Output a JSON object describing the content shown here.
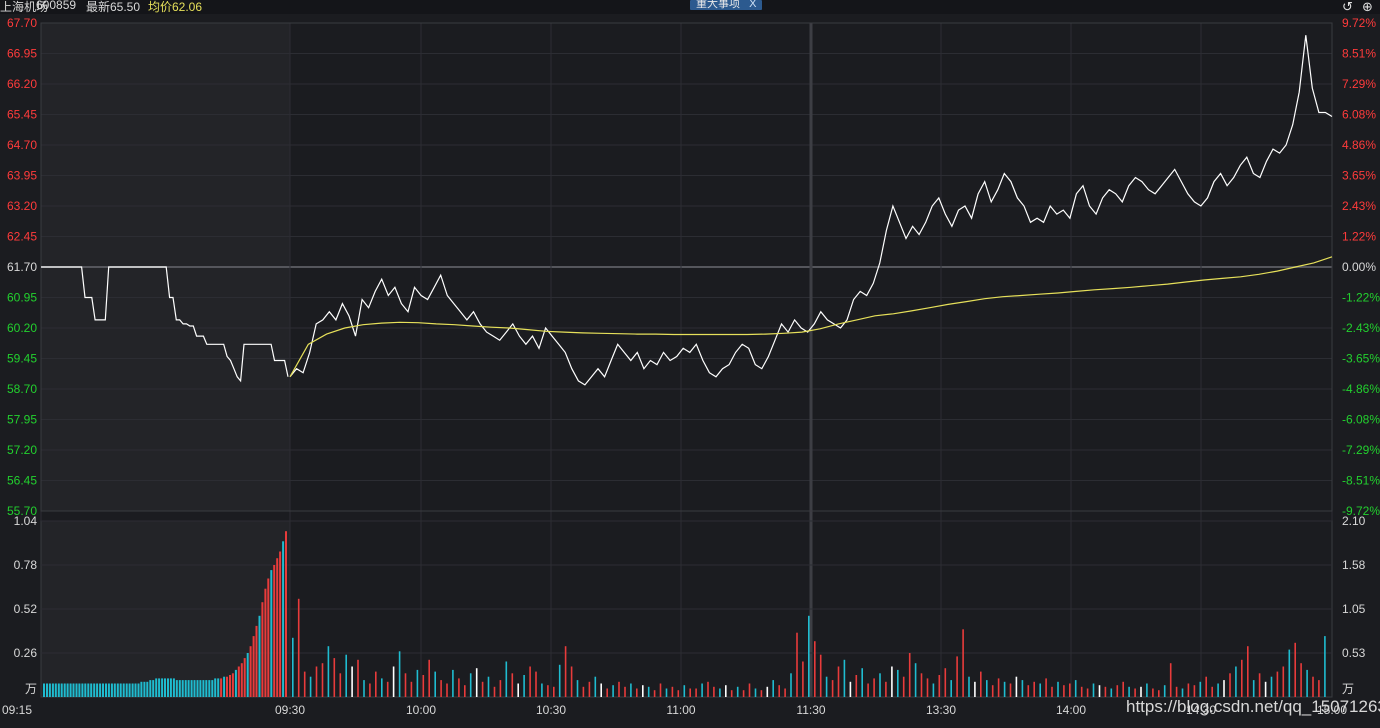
{
  "header": {
    "name": "上海机场",
    "code": "600859",
    "latest": "最新65.50",
    "avg": "均价62.06",
    "event": "重大事项",
    "event_close": "X"
  },
  "icons": {
    "undo": "undo-icon",
    "add": "plus-icon"
  },
  "colors": {
    "up": "#ff3b3b",
    "down": "#22d02e",
    "price": "#ffffff",
    "avg": "#e6e05a",
    "vol_up": "#e83b3b",
    "vol_down": "#1fbcd0",
    "vol_flat": "#ffffff"
  },
  "unit_label": "万",
  "watermark": "https://blog.csdn.net/qq_15071263",
  "chart_data": [
    {
      "type": "line",
      "prev_close": 61.7,
      "ylim": [
        55.7,
        67.7
      ],
      "y_ticks": [
        "67.70",
        "66.95",
        "66.20",
        "65.45",
        "64.70",
        "63.95",
        "63.20",
        "62.45",
        "61.70",
        "60.95",
        "60.20",
        "59.45",
        "58.70",
        "57.95",
        "57.20",
        "56.45",
        "55.70"
      ],
      "pct_ticks": [
        "9.72%",
        "8.51%",
        "7.29%",
        "6.08%",
        "4.86%",
        "3.65%",
        "2.43%",
        "1.22%",
        "0.00%",
        "-1.22%",
        "-2.43%",
        "-3.65%",
        "-4.86%",
        "-6.08%",
        "-7.29%",
        "-8.51%",
        "-9.72%"
      ],
      "x_labels": [
        "09:15",
        "09:30",
        "10:00",
        "10:30",
        "11:00",
        "11:30",
        "13:30",
        "14:00",
        "14:30",
        "15:00"
      ],
      "series": [
        {
          "values": [
            61.7,
            61.7,
            61.7,
            61.7,
            61.7,
            61.7,
            61.7,
            61.7,
            61.7,
            61.7,
            61.7,
            61.7,
            61.7,
            60.95,
            60.95,
            60.95,
            60.4,
            60.4,
            60.4,
            60.4,
            61.7,
            61.7,
            61.7,
            61.7,
            61.7,
            61.7,
            61.7,
            61.7,
            61.7,
            61.7,
            61.7,
            61.7,
            61.7,
            61.7,
            61.7,
            61.7,
            61.7,
            61.7,
            60.95,
            60.95,
            60.4,
            60.4,
            60.3,
            60.3,
            60.25,
            60.25,
            60.0,
            60.0,
            60.0,
            59.8,
            59.8,
            59.8,
            59.8,
            59.8,
            59.8,
            59.5,
            59.4,
            59.2,
            59.0,
            58.9,
            59.8,
            59.8,
            59.8,
            59.8,
            59.8,
            59.8,
            59.8,
            59.8,
            59.8,
            59.4,
            59.4,
            59.4,
            59.4,
            59.0
          ],
          "color": "#ffffff"
        },
        {
          "values": [
            59.0,
            59.2,
            59.1,
            59.6,
            60.3,
            60.4,
            60.6,
            60.4,
            60.8,
            60.5,
            60.0,
            60.9,
            60.7,
            61.1,
            61.4,
            61.0,
            61.2,
            60.8,
            60.6,
            61.2,
            61.0,
            60.9,
            61.2,
            61.5,
            61.0,
            60.8,
            60.6,
            60.4,
            60.6,
            60.3,
            60.1,
            60.0,
            59.9,
            60.1,
            60.3,
            60.0,
            59.8,
            60.0,
            59.7,
            60.2,
            60.0,
            59.8,
            59.6,
            59.2,
            58.9,
            58.8,
            59.0,
            59.2,
            59.0,
            59.4,
            59.8,
            59.6,
            59.4,
            59.6,
            59.2,
            59.4,
            59.3,
            59.6,
            59.4,
            59.5,
            59.7,
            59.6,
            59.8,
            59.4,
            59.1,
            59.0,
            59.2,
            59.3,
            59.6,
            59.8,
            59.7,
            59.3,
            59.2,
            59.5,
            59.9,
            60.3,
            60.1,
            60.4,
            60.2,
            60.1,
            60.3,
            60.6,
            60.4,
            60.3,
            60.2,
            60.4,
            60.9,
            61.1,
            61.0,
            61.3,
            61.8,
            62.6,
            63.2,
            62.8,
            62.4,
            62.7,
            62.5,
            62.8,
            63.2,
            63.4,
            63.0,
            62.7,
            63.1,
            63.2,
            62.9,
            63.5,
            63.8,
            63.3,
            63.6,
            64.0,
            63.8,
            63.4,
            63.2,
            62.8,
            62.9,
            62.8,
            63.2,
            63.0,
            63.1,
            62.9,
            63.5,
            63.7,
            63.2,
            63.0,
            63.4,
            63.6,
            63.5,
            63.3,
            63.7,
            63.9,
            63.8,
            63.6,
            63.5,
            63.7,
            63.9,
            64.1,
            63.8,
            63.5,
            63.3,
            63.2,
            63.4,
            63.8,
            64.0,
            63.7,
            63.9,
            64.2,
            64.4,
            64.0,
            63.9,
            64.3,
            64.6,
            64.5,
            64.7,
            65.2,
            66.0,
            67.4,
            66.1,
            65.5,
            65.5,
            65.4
          ],
          "color": "#ffffff"
        },
        {
          "name_key": "avg",
          "values": [
            59.0,
            59.8,
            60.05,
            60.2,
            60.28,
            60.32,
            60.34,
            60.33,
            60.3,
            60.28,
            60.25,
            60.22,
            60.2,
            60.16,
            60.12,
            60.1,
            60.08,
            60.07,
            60.06,
            60.05,
            60.05,
            60.04,
            60.04,
            60.04,
            60.04,
            60.04,
            60.05,
            60.07,
            60.1,
            60.18,
            60.3,
            60.4,
            60.5,
            60.55,
            60.62,
            60.7,
            60.78,
            60.85,
            60.92,
            60.97,
            61.0,
            61.03,
            61.06,
            61.1,
            61.14,
            61.17,
            61.2,
            61.24,
            61.28,
            61.33,
            61.38,
            61.42,
            61.46,
            61.52,
            61.6,
            61.7,
            61.8,
            61.95
          ],
          "color": "#e6e05a"
        }
      ]
    },
    {
      "type": "bar",
      "ylim": [
        0,
        1.04
      ],
      "y_ticks_left": [
        "1.04",
        "0.78",
        "0.52",
        "0.26"
      ],
      "y_ticks_right": [
        "2.10",
        "1.58",
        "1.05",
        "0.53"
      ],
      "series": [
        {
          "pre_open": [
            0.08,
            0.08,
            0.08,
            0.08,
            0.08,
            0.08,
            0.08,
            0.08,
            0.08,
            0.08,
            0.08,
            0.08,
            0.08,
            0.08,
            0.08,
            0.08,
            0.08,
            0.08,
            0.08,
            0.08,
            0.08,
            0.08,
            0.08,
            0.08,
            0.08,
            0.08,
            0.08,
            0.08,
            0.08,
            0.08,
            0.08,
            0.08,
            0.08,
            0.09,
            0.09,
            0.09,
            0.1,
            0.1,
            0.11,
            0.11,
            0.11,
            0.11,
            0.11,
            0.11,
            0.11,
            0.1,
            0.1,
            0.1,
            0.1,
            0.1,
            0.1,
            0.1,
            0.1,
            0.1,
            0.1,
            0.1,
            0.1,
            0.1,
            0.11,
            0.11,
            0.11,
            0.12,
            0.12,
            0.13,
            0.14,
            0.16,
            0.18,
            0.2,
            0.23,
            0.26,
            0.3,
            0.36,
            0.42,
            0.48,
            0.56,
            0.64,
            0.7,
            0.75,
            0.78,
            0.82,
            0.86,
            0.92,
            0.98
          ]
        },
        {
          "session": [
            0.35,
            0.58,
            0.15,
            0.12,
            0.18,
            0.2,
            0.3,
            0.23,
            0.14,
            0.25,
            0.18,
            0.22,
            0.1,
            0.08,
            0.15,
            0.11,
            0.09,
            0.18,
            0.27,
            0.14,
            0.09,
            0.16,
            0.13,
            0.22,
            0.15,
            0.1,
            0.08,
            0.16,
            0.11,
            0.07,
            0.14,
            0.17,
            0.09,
            0.12,
            0.06,
            0.1,
            0.21,
            0.14,
            0.08,
            0.13,
            0.18,
            0.15,
            0.08,
            0.07,
            0.06,
            0.19,
            0.3,
            0.18,
            0.1,
            0.06,
            0.09,
            0.12,
            0.08,
            0.05,
            0.07,
            0.09,
            0.06,
            0.08,
            0.05,
            0.07,
            0.06,
            0.04,
            0.08,
            0.05,
            0.06,
            0.04,
            0.07,
            0.05,
            0.05,
            0.08,
            0.09,
            0.06,
            0.05,
            0.07,
            0.04,
            0.06,
            0.04,
            0.08,
            0.05,
            0.04,
            0.06,
            0.1,
            0.07,
            0.05,
            0.14,
            0.38,
            0.21,
            0.48,
            0.33,
            0.25,
            0.12,
            0.1,
            0.18,
            0.22,
            0.09,
            0.13,
            0.17,
            0.08,
            0.11,
            0.14,
            0.09,
            0.18,
            0.16,
            0.12,
            0.26,
            0.2,
            0.14,
            0.11,
            0.08,
            0.13,
            0.17,
            0.1,
            0.24,
            0.4,
            0.12,
            0.09,
            0.15,
            0.1,
            0.07,
            0.11,
            0.09,
            0.08,
            0.12,
            0.1,
            0.07,
            0.09,
            0.08,
            0.11,
            0.06,
            0.09,
            0.07,
            0.08,
            0.1,
            0.06,
            0.05,
            0.08,
            0.07,
            0.06,
            0.05,
            0.07,
            0.09,
            0.06,
            0.05,
            0.06,
            0.08,
            0.05,
            0.04,
            0.07,
            0.2,
            0.06,
            0.05,
            0.08,
            0.07,
            0.09,
            0.12,
            0.06,
            0.08,
            0.1,
            0.14,
            0.18,
            0.22,
            0.3,
            0.1,
            0.14,
            0.09,
            0.12,
            0.15,
            0.18,
            0.28,
            0.32,
            0.2,
            0.16,
            0.12,
            0.1,
            0.36
          ]
        }
      ]
    }
  ]
}
